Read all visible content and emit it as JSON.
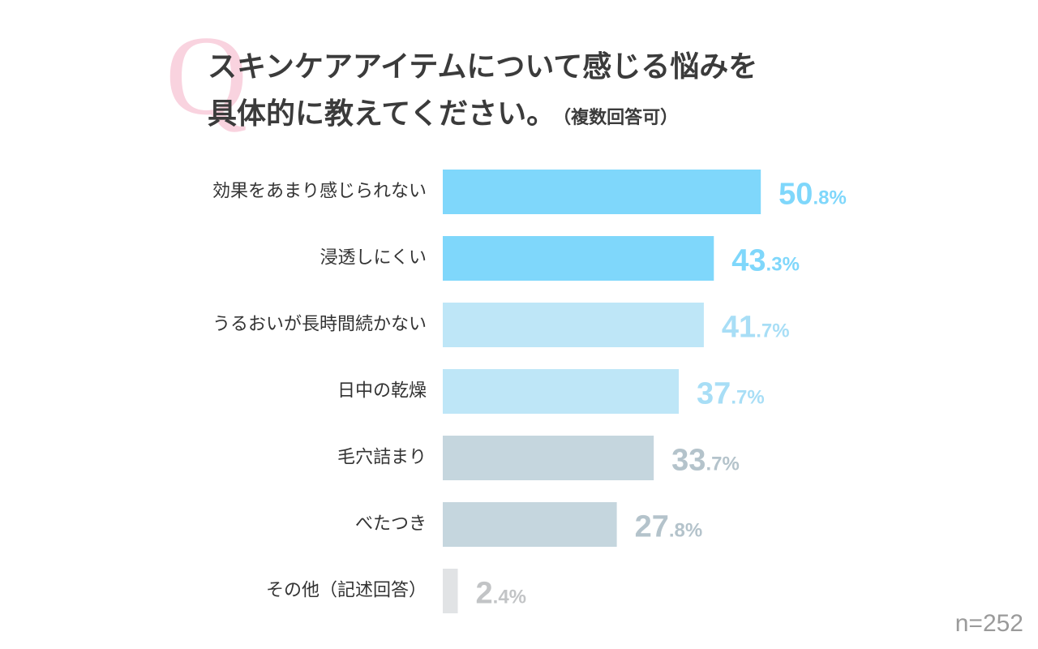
{
  "title": {
    "q_mark": "Q",
    "line1": "スキンケアアイテムについて感じる悩みを",
    "line2": "具体的に教えてください。",
    "note": "（複数回答可）"
  },
  "sample_size": "n=252",
  "chart_data": {
    "type": "bar",
    "orientation": "horizontal",
    "categories": [
      "効果をあまり感じられない",
      "浸透しにくい",
      "うるおいが長時間続かない",
      "日中の乾燥",
      "毛穴詰まり",
      "べたつき",
      "その他（記述回答）"
    ],
    "values": [
      50.8,
      43.3,
      41.7,
      37.7,
      33.7,
      27.8,
      2.4
    ],
    "unit": "%",
    "bar_colors": [
      "#7fd7fb",
      "#7fd7fb",
      "#bee6f7",
      "#bee6f7",
      "#c5d6de",
      "#c5d6de",
      "#e1e3e5"
    ],
    "label_colors": [
      "#7fd7fb",
      "#7fd7fb",
      "#a8def6",
      "#a8def6",
      "#b4c3cb",
      "#b4c3cb",
      "#c2c4c6"
    ],
    "title": "",
    "xlabel": "",
    "ylabel": "",
    "grid": false,
    "legend": "none"
  }
}
